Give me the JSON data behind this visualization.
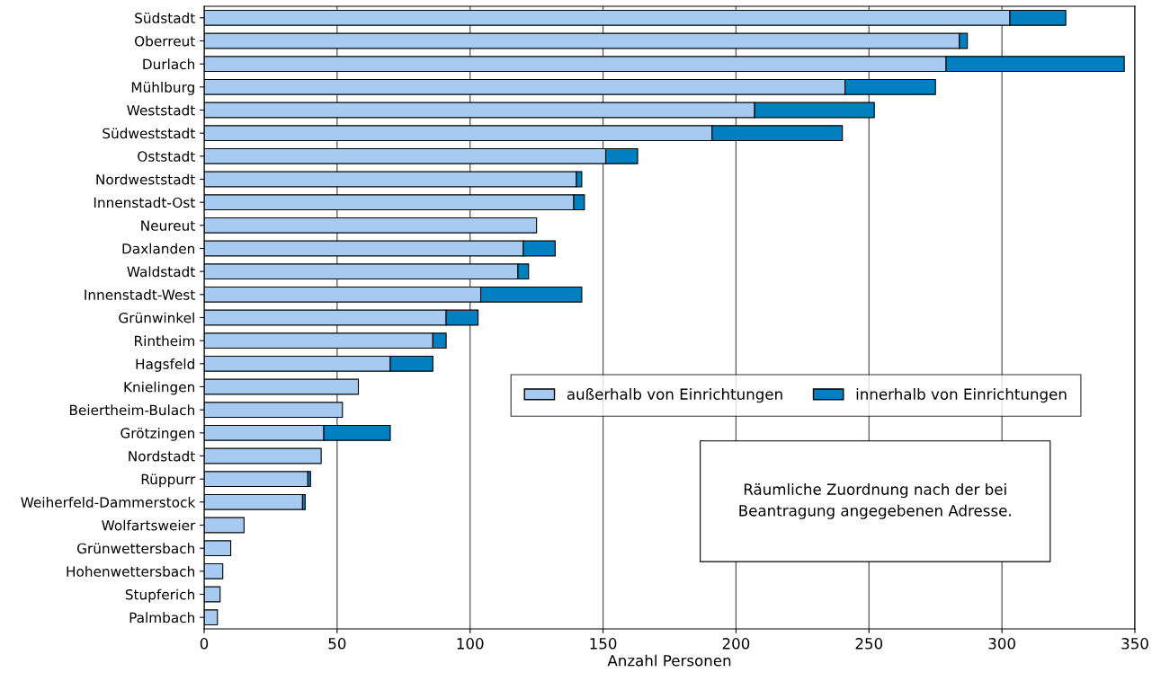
{
  "chart_data": {
    "type": "bar",
    "orientation": "horizontal",
    "stacked": true,
    "categories": [
      "Südstadt",
      "Oberreut",
      "Durlach",
      "Mühlburg",
      "Weststadt",
      "Südweststadt",
      "Oststadt",
      "Nordweststadt",
      "Innenstadt-Ost",
      "Neureut",
      "Daxlanden",
      "Waldstadt",
      "Innenstadt-West",
      "Grünwinkel",
      "Rintheim",
      "Hagsfeld",
      "Knielingen",
      "Beiertheim-Bulach",
      "Grötzingen",
      "Nordstadt",
      "Rüppurr",
      "Weiherfeld-Dammerstock",
      "Wolfartsweier",
      "Grünwettersbach",
      "Hohenwettersbach",
      "Stupferich",
      "Palmbach"
    ],
    "series": [
      {
        "name": "außerhalb von Einrichtungen",
        "color": "#a6caf0",
        "values": [
          303,
          284,
          279,
          241,
          207,
          191,
          151,
          140,
          139,
          125,
          120,
          118,
          104,
          91,
          86,
          70,
          58,
          52,
          45,
          44,
          39,
          37,
          15,
          10,
          7,
          6,
          5
        ]
      },
      {
        "name": "innerhalb von Einrichtungen",
        "color": "#0080c0",
        "values": [
          21,
          3,
          67,
          34,
          45,
          49,
          12,
          2,
          4,
          null,
          12,
          4,
          38,
          12,
          5,
          16,
          null,
          null,
          25,
          null,
          1,
          1,
          null,
          null,
          null,
          null,
          null
        ]
      }
    ],
    "xlabel": "Anzahl Personen",
    "xlim": [
      0,
      350
    ],
    "xticks": [
      0,
      50,
      100,
      150,
      200,
      250,
      300,
      350
    ],
    "grid": "x",
    "legend": "center right",
    "annotations": [
      "Räumliche Zuordnung nach der bei Beantragung angegebenen Adresse."
    ]
  }
}
